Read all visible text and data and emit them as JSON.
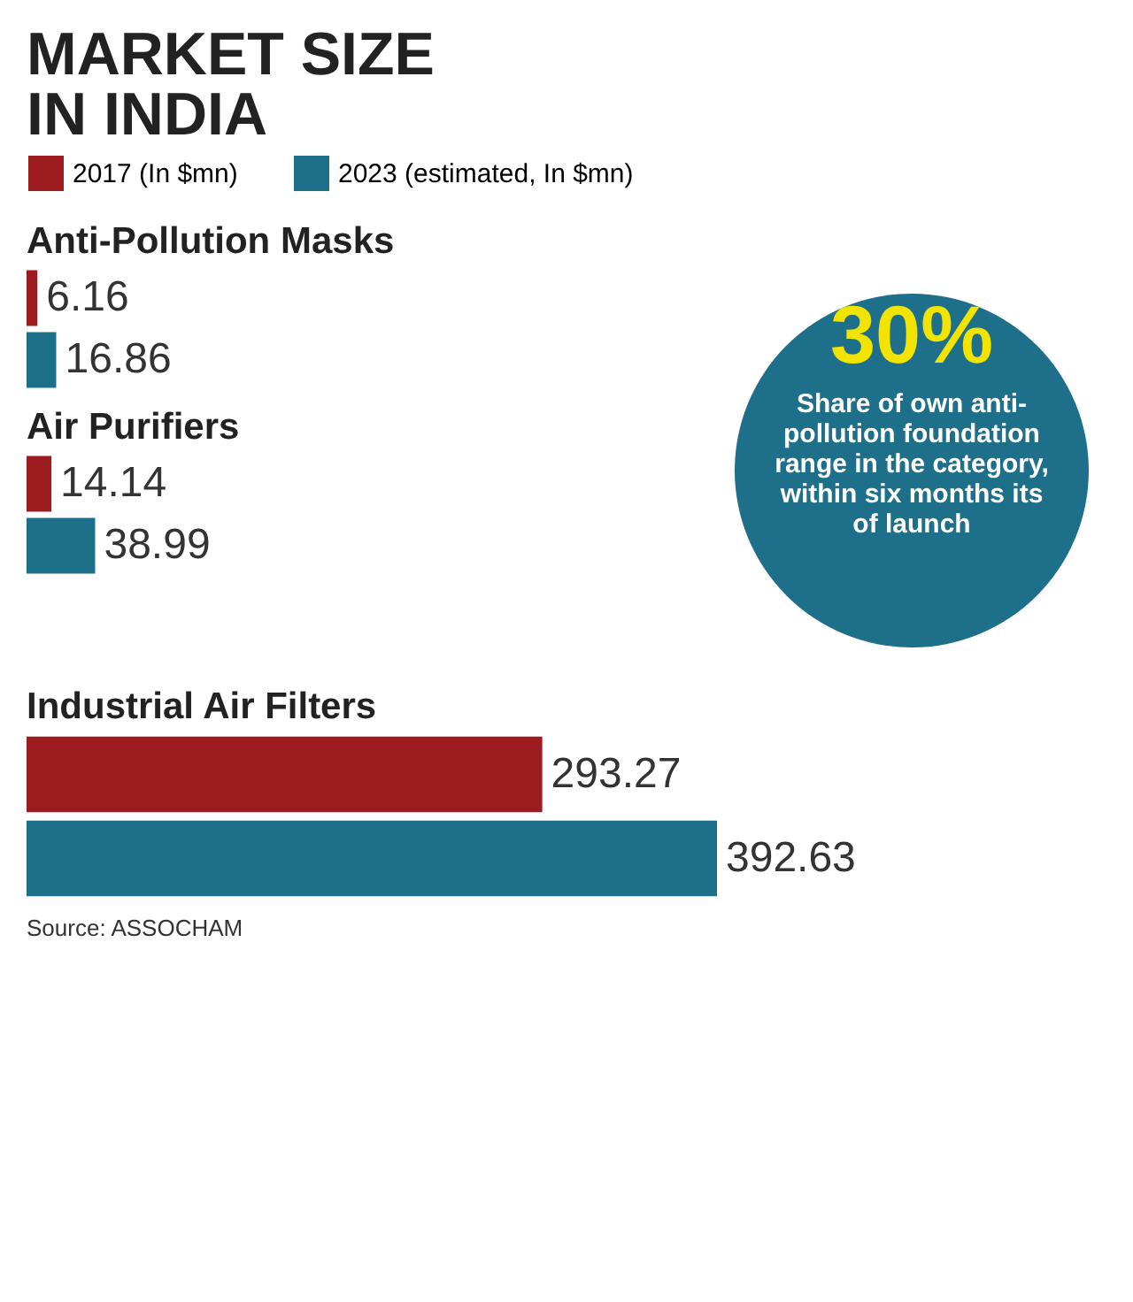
{
  "chart_data": {
    "type": "bar",
    "orientation": "horizontal",
    "title": "MARKET SIZE IN INDIA",
    "categories": [
      "Anti-Pollution Masks",
      "Air Purifiers",
      "Industrial Air Filters"
    ],
    "series": [
      {
        "name": "2017 (In $mn)",
        "color": "#9b1b1e",
        "values": [
          6.16,
          14.14,
          293.27
        ]
      },
      {
        "name": "2023 (estimated, In $mn)",
        "color": "#1e6f8a",
        "values": [
          16.86,
          38.99,
          392.63
        ]
      }
    ],
    "data_labels": true,
    "legend": "top left",
    "annotations": [
      "30%",
      "Share of own anti-pollution foundation range in the category, within six months its of launch",
      "Source: ASSOCHAM"
    ]
  }
}
